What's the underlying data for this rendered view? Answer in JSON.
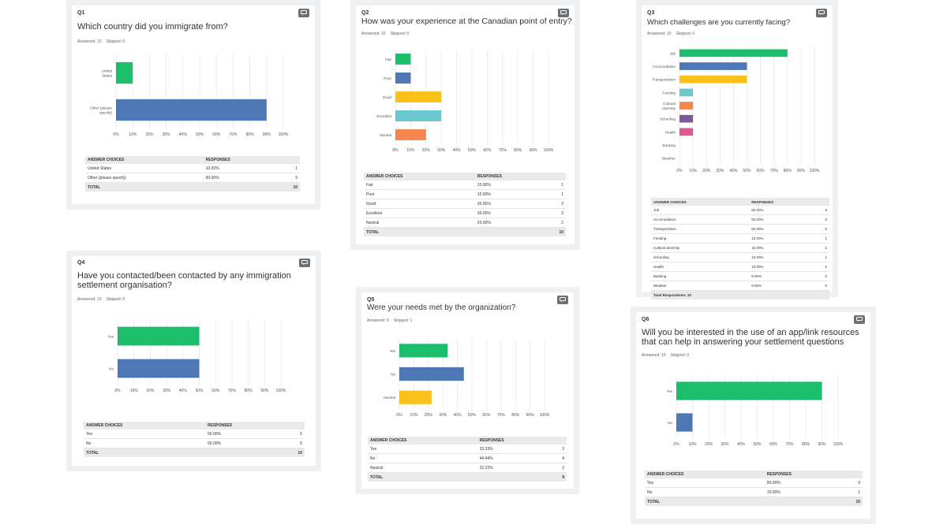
{
  "colors": {
    "green": "#1dbe6b",
    "blue": "#4e78b5",
    "yellow": "#f9c11a",
    "teal": "#6ac8cf",
    "orange": "#f5864e",
    "purple": "#7e5a9b",
    "pink": "#e0588f",
    "grid": "#e6e6e6"
  },
  "table_headers": {
    "choices": "ANSWER CHOICES",
    "responses": "RESPONSES"
  },
  "questions": [
    {
      "num": "Q1",
      "title": "Which country did you immigrate from?",
      "answered": "Answered: 10",
      "skipped": "Skipped: 0",
      "total_label": "TOTAL",
      "total_value": "10",
      "rows": [
        {
          "choice": "United States",
          "pct": "10.00%",
          "count": "1"
        },
        {
          "choice": "Other (please specify)",
          "pct": "90.00%",
          "count": "9"
        }
      ]
    },
    {
      "num": "Q2",
      "title": "How was your experience at the Canadian point of entry?",
      "answered": "Answered: 10",
      "skipped": "Skipped: 0",
      "total_label": "TOTAL",
      "total_value": "10",
      "rows": [
        {
          "choice": "Fair",
          "pct": "10.00%",
          "count": "1"
        },
        {
          "choice": "Poor",
          "pct": "10.00%",
          "count": "1"
        },
        {
          "choice": "Good",
          "pct": "30.00%",
          "count": "3"
        },
        {
          "choice": "Excellent",
          "pct": "30.00%",
          "count": "3"
        },
        {
          "choice": "Neutral",
          "pct": "20.00%",
          "count": "2"
        }
      ]
    },
    {
      "num": "Q3",
      "title": "Which challenges are you currently facing?",
      "answered": "Answered: 10",
      "skipped": "Skipped: 0",
      "total_label": "Total Respondents: 10",
      "total_value": "",
      "rows": [
        {
          "choice": "Job",
          "pct": "80.00%",
          "count": "8"
        },
        {
          "choice": "Accomodation",
          "pct": "50.00%",
          "count": "5"
        },
        {
          "choice": "Transportation",
          "pct": "50.00%",
          "count": "5"
        },
        {
          "choice": "Feeding",
          "pct": "10.00%",
          "count": "1"
        },
        {
          "choice": "Cultural diversity",
          "pct": "10.00%",
          "count": "1"
        },
        {
          "choice": "Schooling",
          "pct": "10.00%",
          "count": "1"
        },
        {
          "choice": "Health",
          "pct": "10.00%",
          "count": "1"
        },
        {
          "choice": "Banking",
          "pct": "0.00%",
          "count": "0"
        },
        {
          "choice": "Weather",
          "pct": "0.00%",
          "count": "0"
        }
      ]
    },
    {
      "num": "Q4",
      "title": "Have you contacted/been contacted by any immigration settlement organisation?",
      "answered": "Answered: 10",
      "skipped": "Skipped: 0",
      "total_label": "TOTAL",
      "total_value": "10",
      "rows": [
        {
          "choice": "Yes",
          "pct": "50.00%",
          "count": "5"
        },
        {
          "choice": "No",
          "pct": "50.00%",
          "count": "5"
        }
      ]
    },
    {
      "num": "Q5",
      "title": "Were your needs met by the organization?",
      "answered": "Answered: 9",
      "skipped": "Skipped: 1",
      "total_label": "TOTAL",
      "total_value": "9",
      "rows": [
        {
          "choice": "Yes",
          "pct": "33.33%",
          "count": "3"
        },
        {
          "choice": "No",
          "pct": "44.44%",
          "count": "4"
        },
        {
          "choice": "Neutral",
          "pct": "22.22%",
          "count": "2"
        }
      ]
    },
    {
      "num": "Q6",
      "title": "Will you be interested in the use of an app/link resources that can help in answering your settlement questions",
      "answered": "Answered: 10",
      "skipped": "Skipped: 0",
      "total_label": "TOTAL",
      "total_value": "10",
      "rows": [
        {
          "choice": "Yes",
          "pct": "90.00%",
          "count": "9"
        },
        {
          "choice": "No",
          "pct": "10.00%",
          "count": "1"
        }
      ]
    }
  ],
  "chart_data": [
    {
      "type": "bar",
      "orientation": "horizontal",
      "categories": [
        "United States",
        "Other (please specify)"
      ],
      "values": [
        10,
        90
      ],
      "colors": [
        "green",
        "blue"
      ],
      "xlim": [
        0,
        100
      ],
      "ticks": [
        "0%",
        "10%",
        "20%",
        "30%",
        "40%",
        "50%",
        "60%",
        "70%",
        "80%",
        "90%",
        "100%"
      ],
      "grid": true
    },
    {
      "type": "bar",
      "orientation": "horizontal",
      "categories": [
        "Fair",
        "Poor",
        "Good",
        "Excellent",
        "Neutral"
      ],
      "values": [
        10,
        10,
        30,
        30,
        20
      ],
      "colors": [
        "green",
        "blue",
        "yellow",
        "teal",
        "orange"
      ],
      "xlim": [
        0,
        100
      ],
      "ticks": [
        "0%",
        "10%",
        "20%",
        "30%",
        "40%",
        "50%",
        "60%",
        "70%",
        "80%",
        "90%",
        "100%"
      ],
      "grid": true
    },
    {
      "type": "bar",
      "orientation": "horizontal",
      "categories": [
        "Job",
        "Accomodation",
        "Transportation",
        "Feeding",
        "Cultural diversity",
        "Schooling",
        "Health",
        "Banking",
        "Weather"
      ],
      "values": [
        80,
        50,
        50,
        10,
        10,
        10,
        10,
        0,
        0
      ],
      "colors": [
        "green",
        "blue",
        "yellow",
        "teal",
        "orange",
        "purple",
        "pink",
        "green",
        "blue"
      ],
      "xlim": [
        0,
        100
      ],
      "ticks": [
        "0%",
        "10%",
        "20%",
        "30%",
        "40%",
        "50%",
        "60%",
        "70%",
        "80%",
        "90%",
        "100%"
      ],
      "grid": true
    },
    {
      "type": "bar",
      "orientation": "horizontal",
      "categories": [
        "Yes",
        "No"
      ],
      "values": [
        50,
        50
      ],
      "colors": [
        "green",
        "blue"
      ],
      "xlim": [
        0,
        100
      ],
      "ticks": [
        "0%",
        "10%",
        "20%",
        "30%",
        "40%",
        "50%",
        "60%",
        "70%",
        "80%",
        "90%",
        "100%"
      ],
      "grid": true
    },
    {
      "type": "bar",
      "orientation": "horizontal",
      "categories": [
        "Yes",
        "No",
        "Neutral"
      ],
      "values": [
        33.33,
        44.44,
        22.22
      ],
      "colors": [
        "green",
        "blue",
        "yellow"
      ],
      "xlim": [
        0,
        100
      ],
      "ticks": [
        "0%",
        "10%",
        "20%",
        "30%",
        "40%",
        "50%",
        "60%",
        "70%",
        "80%",
        "90%",
        "100%"
      ],
      "grid": true
    },
    {
      "type": "bar",
      "orientation": "horizontal",
      "categories": [
        "Yes",
        "No"
      ],
      "values": [
        90,
        10
      ],
      "colors": [
        "green",
        "blue"
      ],
      "xlim": [
        0,
        100
      ],
      "ticks": [
        "0%",
        "10%",
        "20%",
        "30%",
        "40%",
        "50%",
        "60%",
        "70%",
        "80%",
        "90%",
        "100%"
      ],
      "grid": true
    }
  ]
}
